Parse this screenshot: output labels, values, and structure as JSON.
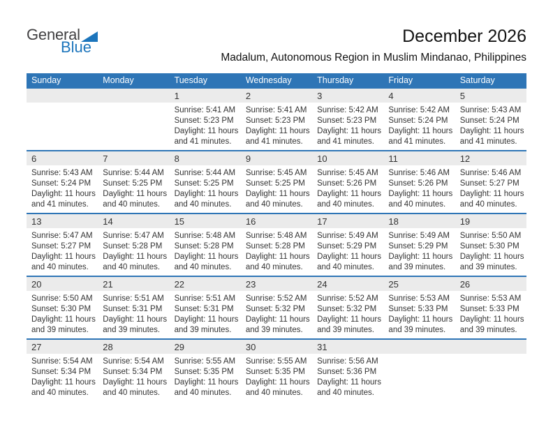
{
  "logo": {
    "text_top": "General",
    "text_bottom": "Blue"
  },
  "header": {
    "title": "December 2026",
    "subtitle": "Madalum, Autonomous Region in Muslim Mindanao, Philippines"
  },
  "colors": {
    "accent_blue": "#2E75B6",
    "logo_blue": "#1C75BC",
    "number_band_gray": "#EBEBEB"
  },
  "calendar": {
    "day_headers": [
      "Sunday",
      "Monday",
      "Tuesday",
      "Wednesday",
      "Thursday",
      "Friday",
      "Saturday"
    ],
    "weeks": [
      [
        null,
        null,
        {
          "date": "1",
          "lines": [
            "Sunrise: 5:41 AM",
            "Sunset: 5:23 PM",
            "Daylight: 11 hours",
            "and 41 minutes."
          ]
        },
        {
          "date": "2",
          "lines": [
            "Sunrise: 5:41 AM",
            "Sunset: 5:23 PM",
            "Daylight: 11 hours",
            "and 41 minutes."
          ]
        },
        {
          "date": "3",
          "lines": [
            "Sunrise: 5:42 AM",
            "Sunset: 5:23 PM",
            "Daylight: 11 hours",
            "and 41 minutes."
          ]
        },
        {
          "date": "4",
          "lines": [
            "Sunrise: 5:42 AM",
            "Sunset: 5:24 PM",
            "Daylight: 11 hours",
            "and 41 minutes."
          ]
        },
        {
          "date": "5",
          "lines": [
            "Sunrise: 5:43 AM",
            "Sunset: 5:24 PM",
            "Daylight: 11 hours",
            "and 41 minutes."
          ]
        }
      ],
      [
        {
          "date": "6",
          "lines": [
            "Sunrise: 5:43 AM",
            "Sunset: 5:24 PM",
            "Daylight: 11 hours",
            "and 41 minutes."
          ]
        },
        {
          "date": "7",
          "lines": [
            "Sunrise: 5:44 AM",
            "Sunset: 5:25 PM",
            "Daylight: 11 hours",
            "and 40 minutes."
          ]
        },
        {
          "date": "8",
          "lines": [
            "Sunrise: 5:44 AM",
            "Sunset: 5:25 PM",
            "Daylight: 11 hours",
            "and 40 minutes."
          ]
        },
        {
          "date": "9",
          "lines": [
            "Sunrise: 5:45 AM",
            "Sunset: 5:25 PM",
            "Daylight: 11 hours",
            "and 40 minutes."
          ]
        },
        {
          "date": "10",
          "lines": [
            "Sunrise: 5:45 AM",
            "Sunset: 5:26 PM",
            "Daylight: 11 hours",
            "and 40 minutes."
          ]
        },
        {
          "date": "11",
          "lines": [
            "Sunrise: 5:46 AM",
            "Sunset: 5:26 PM",
            "Daylight: 11 hours",
            "and 40 minutes."
          ]
        },
        {
          "date": "12",
          "lines": [
            "Sunrise: 5:46 AM",
            "Sunset: 5:27 PM",
            "Daylight: 11 hours",
            "and 40 minutes."
          ]
        }
      ],
      [
        {
          "date": "13",
          "lines": [
            "Sunrise: 5:47 AM",
            "Sunset: 5:27 PM",
            "Daylight: 11 hours",
            "and 40 minutes."
          ]
        },
        {
          "date": "14",
          "lines": [
            "Sunrise: 5:47 AM",
            "Sunset: 5:28 PM",
            "Daylight: 11 hours",
            "and 40 minutes."
          ]
        },
        {
          "date": "15",
          "lines": [
            "Sunrise: 5:48 AM",
            "Sunset: 5:28 PM",
            "Daylight: 11 hours",
            "and 40 minutes."
          ]
        },
        {
          "date": "16",
          "lines": [
            "Sunrise: 5:48 AM",
            "Sunset: 5:28 PM",
            "Daylight: 11 hours",
            "and 40 minutes."
          ]
        },
        {
          "date": "17",
          "lines": [
            "Sunrise: 5:49 AM",
            "Sunset: 5:29 PM",
            "Daylight: 11 hours",
            "and 40 minutes."
          ]
        },
        {
          "date": "18",
          "lines": [
            "Sunrise: 5:49 AM",
            "Sunset: 5:29 PM",
            "Daylight: 11 hours",
            "and 39 minutes."
          ]
        },
        {
          "date": "19",
          "lines": [
            "Sunrise: 5:50 AM",
            "Sunset: 5:30 PM",
            "Daylight: 11 hours",
            "and 39 minutes."
          ]
        }
      ],
      [
        {
          "date": "20",
          "lines": [
            "Sunrise: 5:50 AM",
            "Sunset: 5:30 PM",
            "Daylight: 11 hours",
            "and 39 minutes."
          ]
        },
        {
          "date": "21",
          "lines": [
            "Sunrise: 5:51 AM",
            "Sunset: 5:31 PM",
            "Daylight: 11 hours",
            "and 39 minutes."
          ]
        },
        {
          "date": "22",
          "lines": [
            "Sunrise: 5:51 AM",
            "Sunset: 5:31 PM",
            "Daylight: 11 hours",
            "and 39 minutes."
          ]
        },
        {
          "date": "23",
          "lines": [
            "Sunrise: 5:52 AM",
            "Sunset: 5:32 PM",
            "Daylight: 11 hours",
            "and 39 minutes."
          ]
        },
        {
          "date": "24",
          "lines": [
            "Sunrise: 5:52 AM",
            "Sunset: 5:32 PM",
            "Daylight: 11 hours",
            "and 39 minutes."
          ]
        },
        {
          "date": "25",
          "lines": [
            "Sunrise: 5:53 AM",
            "Sunset: 5:33 PM",
            "Daylight: 11 hours",
            "and 39 minutes."
          ]
        },
        {
          "date": "26",
          "lines": [
            "Sunrise: 5:53 AM",
            "Sunset: 5:33 PM",
            "Daylight: 11 hours",
            "and 39 minutes."
          ]
        }
      ],
      [
        {
          "date": "27",
          "lines": [
            "Sunrise: 5:54 AM",
            "Sunset: 5:34 PM",
            "Daylight: 11 hours",
            "and 40 minutes."
          ]
        },
        {
          "date": "28",
          "lines": [
            "Sunrise: 5:54 AM",
            "Sunset: 5:34 PM",
            "Daylight: 11 hours",
            "and 40 minutes."
          ]
        },
        {
          "date": "29",
          "lines": [
            "Sunrise: 5:55 AM",
            "Sunset: 5:35 PM",
            "Daylight: 11 hours",
            "and 40 minutes."
          ]
        },
        {
          "date": "30",
          "lines": [
            "Sunrise: 5:55 AM",
            "Sunset: 5:35 PM",
            "Daylight: 11 hours",
            "and 40 minutes."
          ]
        },
        {
          "date": "31",
          "lines": [
            "Sunrise: 5:56 AM",
            "Sunset: 5:36 PM",
            "Daylight: 11 hours",
            "and 40 minutes."
          ]
        },
        null,
        null
      ]
    ]
  }
}
